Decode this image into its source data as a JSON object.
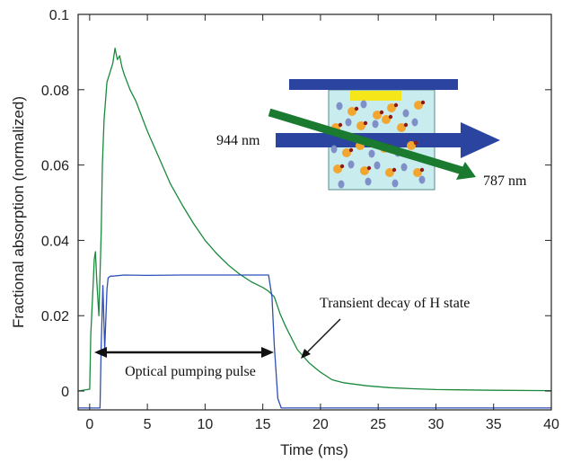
{
  "chart_data": {
    "type": "line",
    "xlabel": "Time (ms)",
    "ylabel": "Fractional absorption (normalized)",
    "xlim": [
      -1,
      40
    ],
    "ylim": [
      -0.005,
      0.1
    ],
    "x_ticks": [
      0,
      5,
      10,
      15,
      20,
      25,
      30,
      35,
      40
    ],
    "y_ticks": [
      0,
      0.02,
      0.04,
      0.06,
      0.08,
      0.1
    ],
    "x_tick_labels": [
      "0",
      "5",
      "10",
      "15",
      "20",
      "25",
      "30",
      "35",
      "40"
    ],
    "y_tick_labels": [
      "0",
      "0.02",
      "0.04",
      "0.06",
      "0.08",
      "0.1"
    ],
    "grid": false,
    "series": [
      {
        "color": "#1a8a3c",
        "x": [
          -1,
          0,
          0.1,
          0.3,
          0.4,
          0.5,
          0.6,
          0.8,
          1.0,
          1.1,
          1.25,
          1.5,
          1.8,
          2.0,
          2.2,
          2.4,
          2.6,
          2.8,
          3.0,
          3.5,
          4.0,
          4.5,
          5.0,
          6.0,
          7.0,
          8.0,
          9.0,
          10.0,
          11.0,
          12.0,
          13.0,
          14.0,
          15.0,
          15.5,
          16.0,
          16.5,
          17.0,
          18.0,
          19.0,
          20.0,
          21.0,
          22.0,
          24.0,
          26.0,
          28.0,
          30.0,
          35.0,
          40.0
        ],
        "y": [
          0,
          0.0005,
          0.015,
          0.028,
          0.035,
          0.037,
          0.03,
          0.02,
          0.042,
          0.06,
          0.072,
          0.082,
          0.085,
          0.087,
          0.091,
          0.088,
          0.089,
          0.086,
          0.084,
          0.08,
          0.077,
          0.073,
          0.069,
          0.062,
          0.055,
          0.0495,
          0.0445,
          0.04,
          0.0365,
          0.0335,
          0.031,
          0.029,
          0.0275,
          0.0265,
          0.025,
          0.0205,
          0.017,
          0.011,
          0.0075,
          0.005,
          0.003,
          0.0022,
          0.0014,
          0.0009,
          0.0006,
          0.0004,
          0.0002,
          0.0001
        ]
      },
      {
        "color": "#2e4fb5",
        "x": [
          -1,
          0.9,
          1.0,
          1.15,
          1.3,
          1.5,
          1.6,
          1.8,
          2.0,
          3.0,
          5.0,
          8.0,
          10.0,
          12.0,
          15.5,
          15.8,
          16.0,
          16.3,
          16.6,
          20.0,
          30.0,
          40.0
        ],
        "y": [
          -0.0045,
          -0.0045,
          0.012,
          0.028,
          0.011,
          0.027,
          0.03,
          0.0305,
          0.0305,
          0.0308,
          0.0307,
          0.0308,
          0.0308,
          0.0308,
          0.0308,
          0.025,
          0.012,
          -0.002,
          -0.0045,
          -0.0045,
          -0.0045,
          -0.0045
        ]
      }
    ],
    "annotations": {
      "pulse_label": "Optical pumping pulse",
      "decay_label": "Transient decay of H state",
      "inset_left_label": "944 nm",
      "inset_right_label": "787 nm"
    }
  }
}
